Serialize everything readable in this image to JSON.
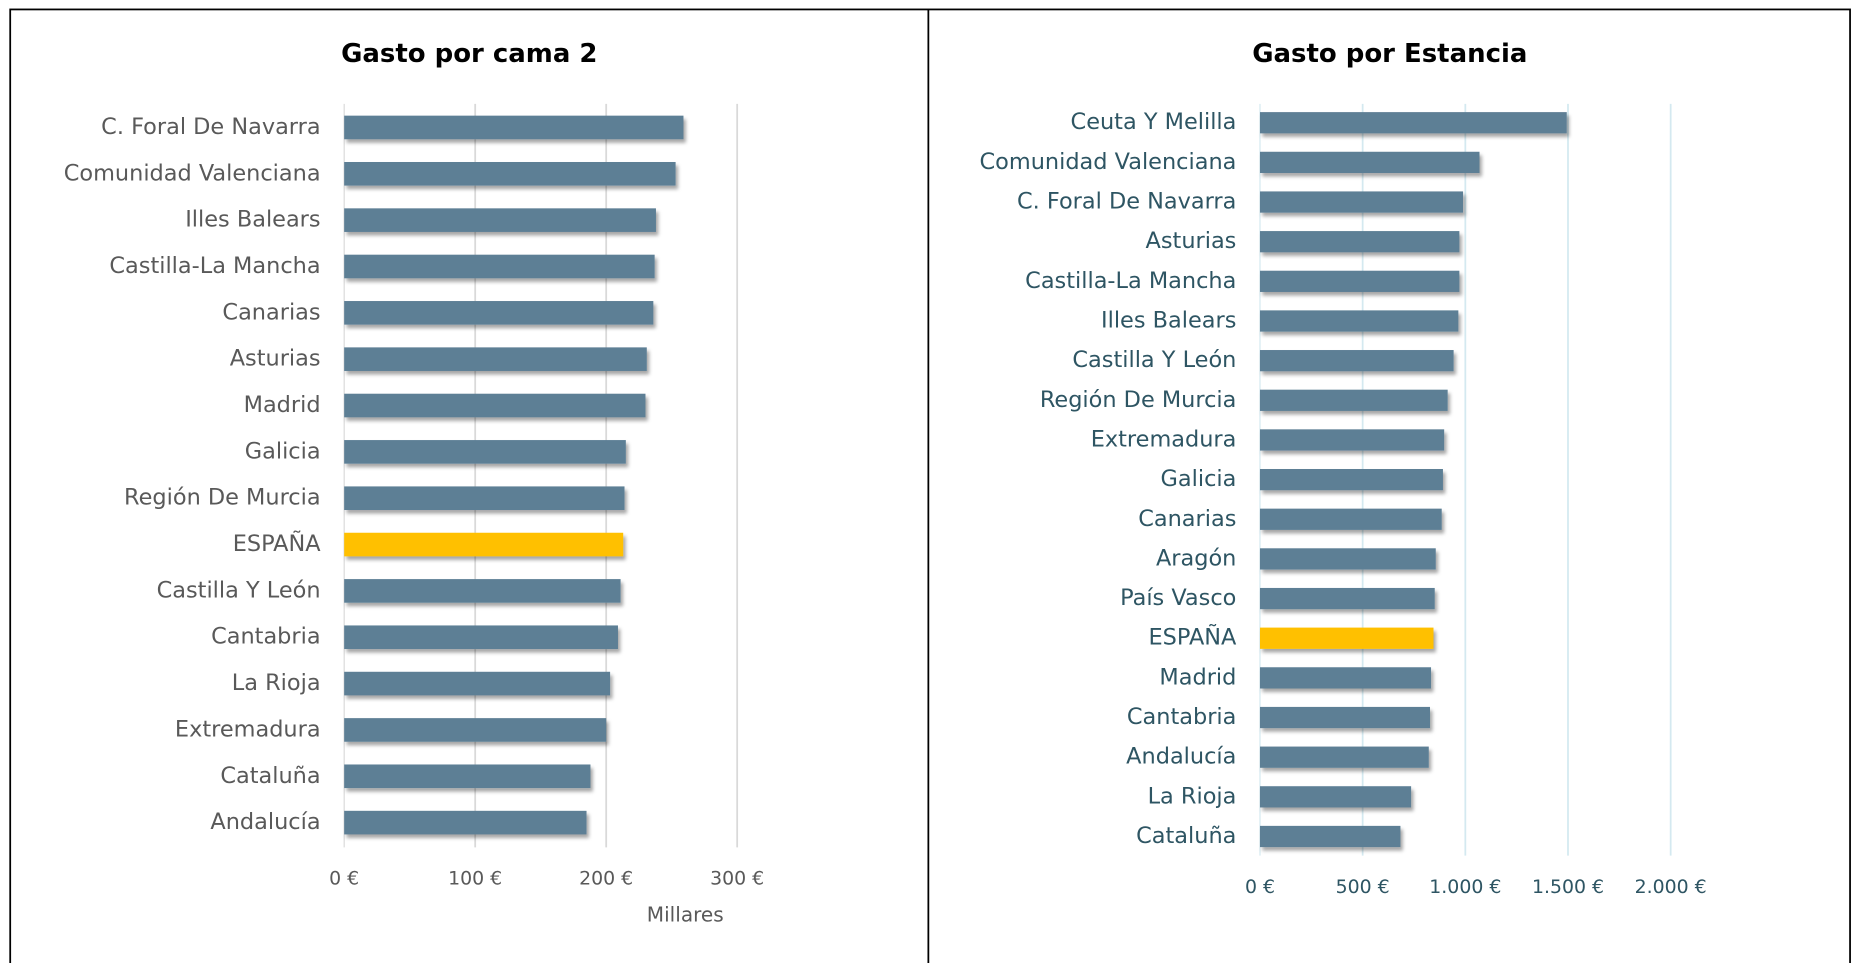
{
  "chart_data": [
    {
      "type": "bar",
      "title": "Gasto por cama 2",
      "x_label": "Millares",
      "categories": [
        "C. Foral De Navarra",
        "Comunidad Valenciana",
        "Illes Balears",
        "Castilla-La Mancha",
        "Canarias",
        "Asturias",
        "Madrid",
        "Galicia",
        "Región De Murcia",
        "ESPAÑA",
        "Castilla Y León",
        "Cantabria",
        "La Rioja",
        "Extremadura",
        "Cataluña",
        "Andalucía"
      ],
      "values": [
        259,
        253,
        238,
        237,
        236,
        231,
        230,
        215,
        214,
        213,
        211,
        209,
        203,
        200,
        188,
        185
      ],
      "colors": [
        "#5d7f95",
        "#5d7f95",
        "#5d7f95",
        "#5d7f95",
        "#5d7f95",
        "#5d7f95",
        "#5d7f95",
        "#5d7f95",
        "#5d7f95",
        "#ffc000",
        "#5d7f95",
        "#5d7f95",
        "#5d7f95",
        "#5d7f95",
        "#5d7f95",
        "#5d7f95"
      ],
      "xlim": [
        0,
        300
      ],
      "xticks": [
        {
          "value": 0,
          "label": "0 €"
        },
        {
          "value": 100,
          "label": "100 €"
        },
        {
          "value": 200,
          "label": "200 €"
        },
        {
          "value": 300,
          "label": "300 €"
        }
      ],
      "grid": true
    },
    {
      "type": "bar",
      "title": "Gasto por Estancia",
      "categories": [
        "Ceuta Y Melilla",
        "Comunidad Valenciana",
        "C. Foral De Navarra",
        "Asturias",
        "Castilla-La Mancha",
        "Illes Balears",
        "Castilla Y León",
        "Región De Murcia",
        "Extremadura",
        "Galicia",
        "Canarias",
        "Aragón",
        "País Vasco",
        "ESPAÑA",
        "Madrid",
        "Cantabria",
        "Andalucía",
        "La Rioja",
        "Cataluña"
      ],
      "values": [
        1494,
        1069,
        989,
        971,
        971,
        966,
        943,
        914,
        897,
        891,
        885,
        856,
        851,
        845,
        833,
        828,
        822,
        736,
        684
      ],
      "colors": [
        "#5d7f95",
        "#5d7f95",
        "#5d7f95",
        "#5d7f95",
        "#5d7f95",
        "#5d7f95",
        "#5d7f95",
        "#5d7f95",
        "#5d7f95",
        "#5d7f95",
        "#5d7f95",
        "#5d7f95",
        "#5d7f95",
        "#ffc000",
        "#5d7f95",
        "#5d7f95",
        "#5d7f95",
        "#5d7f95",
        "#5d7f95"
      ],
      "xlim": [
        0,
        2000
      ],
      "xticks": [
        {
          "value": 0,
          "label": "0 €"
        },
        {
          "value": 500,
          "label": "500 €"
        },
        {
          "value": 1000,
          "label": "1.000 €"
        },
        {
          "value": 1500,
          "label": "1.500 €"
        },
        {
          "value": 2000,
          "label": "2.000 €"
        }
      ],
      "grid": true
    }
  ]
}
